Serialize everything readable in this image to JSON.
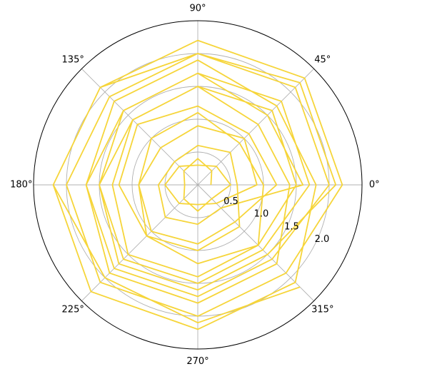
{
  "chart_data": {
    "type": "line",
    "projection": "polar",
    "title": "",
    "theta_tick_labels": [
      "0°",
      "45°",
      "90°",
      "135°",
      "180°",
      "225°",
      "270°",
      "315°"
    ],
    "theta_ticks_deg": [
      0,
      45,
      90,
      135,
      180,
      225,
      270,
      315
    ],
    "r_tick_labels": [
      "0.5",
      "1.0",
      "1.5",
      "2.0"
    ],
    "r_ticks": [
      0.5,
      1.0,
      1.5,
      2.0
    ],
    "rlim": [
      0,
      2.5
    ],
    "r_label_angle_deg": 337.5,
    "grid": true,
    "legend": "none",
    "series": [
      {
        "color": "#f6d53a",
        "theta_step_deg": 45,
        "r": [
          0.2,
          0.3,
          0.4,
          0.3,
          0.2,
          0.3,
          0.4,
          0.3,
          0.5,
          0.4,
          0.3,
          0.4,
          0.5,
          0.4,
          0.3,
          0.4,
          0.9,
          1.0,
          0.9,
          0.8,
          0.9,
          1.0,
          0.9,
          0.8,
          1.2,
          1.1,
          1.2,
          1.3,
          1.2,
          1.1,
          1.2,
          1.3,
          1.5,
          1.6,
          1.5,
          1.4,
          1.5,
          1.6,
          1.5,
          1.4,
          1.7,
          1.8,
          1.7,
          1.6,
          1.7,
          1.8,
          1.7,
          1.6,
          2.0,
          2.1,
          2.0,
          1.9,
          2.0,
          2.1,
          2.0,
          1.9,
          2.2,
          2.3,
          2.2,
          2.1,
          2.2,
          2.3,
          2.2,
          2.1,
          1.8,
          1.7,
          1.9,
          1.8,
          1.7,
          1.9,
          1.8,
          1.7,
          1.4,
          1.3,
          1.5,
          1.4,
          1.3,
          1.5,
          1.4,
          1.3,
          1.0,
          0.9,
          1.1,
          1.0,
          0.9,
          1.1,
          1.0,
          0.9,
          0.6,
          0.7,
          0.6,
          0.5,
          0.6,
          0.7,
          0.6,
          0.5,
          1.6,
          1.5,
          1.7,
          1.6,
          1.5,
          1.7,
          1.6,
          1.5,
          2.1,
          2.2,
          2.0,
          2.1,
          2.2,
          2.0,
          2.1,
          2.2
        ]
      }
    ]
  }
}
